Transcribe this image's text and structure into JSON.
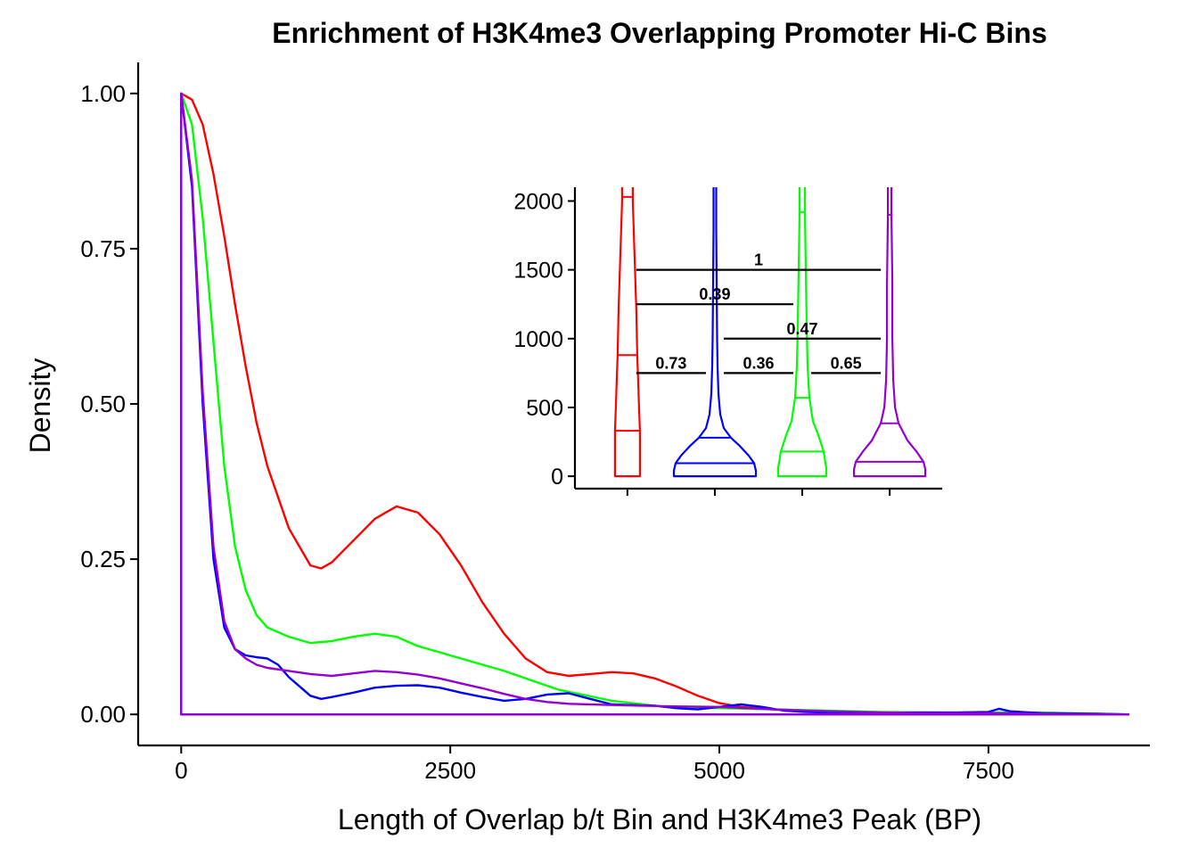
{
  "chart_data": [
    {
      "type": "line",
      "title": "Enrichment of H3K4me3 Overlapping Promoter Hi-C Bins",
      "xlabel": "Length of Overlap b/t Bin and H3K4me3 Peak (BP)",
      "ylabel": "Density",
      "xlim": [
        -400,
        9000
      ],
      "ylim": [
        -0.05,
        1.05
      ],
      "xticks": [
        0,
        2500,
        5000,
        7500
      ],
      "xtick_labels": [
        "0",
        "2500",
        "5000",
        "7500"
      ],
      "yticks": [
        0,
        0.25,
        0.5,
        0.75,
        1.0
      ],
      "ytick_labels": [
        "0.00",
        "0.25",
        "0.50",
        "0.75",
        "1.00"
      ],
      "grid": false,
      "legend": "none",
      "series": [
        {
          "color": "#FF0000",
          "x": [
            0,
            100,
            200,
            300,
            400,
            500,
            600,
            700,
            800,
            1000,
            1200,
            1300,
            1400,
            1600,
            1800,
            2000,
            2200,
            2400,
            2600,
            2800,
            3000,
            3200,
            3400,
            3600,
            3800,
            4000,
            4200,
            4400,
            4600,
            4800,
            5000,
            5200,
            5500,
            6000,
            6500,
            7000,
            7500,
            8000,
            8500,
            8800
          ],
          "y": [
            1.0,
            0.99,
            0.95,
            0.87,
            0.77,
            0.66,
            0.56,
            0.47,
            0.4,
            0.3,
            0.24,
            0.235,
            0.245,
            0.28,
            0.315,
            0.335,
            0.325,
            0.29,
            0.24,
            0.18,
            0.13,
            0.09,
            0.068,
            0.062,
            0.065,
            0.068,
            0.066,
            0.058,
            0.045,
            0.03,
            0.018,
            0.012,
            0.008,
            0.005,
            0.003,
            0.003,
            0.002,
            0.001,
            0.0,
            0.0
          ]
        },
        {
          "color": "#00FF00",
          "x": [
            0,
            100,
            200,
            300,
            400,
            500,
            600,
            700,
            800,
            1000,
            1200,
            1400,
            1600,
            1800,
            2000,
            2200,
            2400,
            2600,
            2800,
            3000,
            3200,
            3500,
            4000,
            4500,
            5000,
            5500,
            6000,
            6500,
            7000,
            7500,
            8000,
            8500,
            8800
          ],
          "y": [
            1.0,
            0.95,
            0.8,
            0.6,
            0.4,
            0.27,
            0.2,
            0.16,
            0.14,
            0.125,
            0.115,
            0.118,
            0.125,
            0.13,
            0.125,
            0.11,
            0.1,
            0.09,
            0.08,
            0.07,
            0.058,
            0.04,
            0.022,
            0.012,
            0.01,
            0.008,
            0.006,
            0.004,
            0.003,
            0.003,
            0.003,
            0.001,
            0.0
          ]
        },
        {
          "color": "#0000FF",
          "x": [
            0,
            100,
            200,
            300,
            400,
            500,
            600,
            700,
            800,
            900,
            1000,
            1100,
            1200,
            1300,
            1400,
            1600,
            1800,
            2000,
            2200,
            2400,
            2600,
            2800,
            3000,
            3200,
            3400,
            3600,
            3800,
            4000,
            4200,
            4400,
            4600,
            4800,
            5000,
            5200,
            5400,
            5600,
            5800,
            6000,
            6400,
            6800,
            7200,
            7500,
            7600,
            7700,
            8000,
            8500,
            8800
          ],
          "y": [
            1.0,
            0.85,
            0.5,
            0.25,
            0.14,
            0.105,
            0.095,
            0.092,
            0.09,
            0.08,
            0.06,
            0.045,
            0.03,
            0.025,
            0.028,
            0.035,
            0.043,
            0.046,
            0.047,
            0.043,
            0.035,
            0.028,
            0.022,
            0.025,
            0.032,
            0.034,
            0.025,
            0.016,
            0.015,
            0.014,
            0.01,
            0.008,
            0.012,
            0.016,
            0.012,
            0.006,
            0.004,
            0.003,
            0.002,
            0.003,
            0.003,
            0.004,
            0.009,
            0.005,
            0.002,
            0.001,
            0.0
          ]
        },
        {
          "color": "#9400D3",
          "x": [
            0,
            100,
            200,
            300,
            400,
            500,
            600,
            700,
            800,
            1000,
            1200,
            1400,
            1600,
            1800,
            2000,
            2200,
            2400,
            2600,
            2800,
            3000,
            3200,
            3400,
            3600,
            4000,
            4500,
            5000,
            5500,
            6000,
            6500,
            7000,
            7500,
            8000,
            8500,
            8800
          ],
          "y": [
            1.0,
            0.86,
            0.52,
            0.27,
            0.15,
            0.105,
            0.09,
            0.08,
            0.075,
            0.07,
            0.065,
            0.062,
            0.066,
            0.07,
            0.068,
            0.064,
            0.058,
            0.05,
            0.042,
            0.033,
            0.025,
            0.02,
            0.017,
            0.015,
            0.013,
            0.012,
            0.008,
            0.005,
            0.003,
            0.002,
            0.002,
            0.001,
            0.0,
            0.0
          ]
        }
      ]
    },
    {
      "type": "violin",
      "title": "",
      "xlabel": "",
      "ylabel": "",
      "ylim": [
        -90,
        2100
      ],
      "yticks": [
        0,
        500,
        1000,
        1500,
        2000
      ],
      "ytick_labels": [
        "0",
        "500",
        "1000",
        "1500",
        "2000"
      ],
      "grid": false,
      "legend": "none",
      "groups": [
        {
          "color": "#FF0000",
          "quartile_lines": [
            330,
            880,
            2030
          ],
          "profile": [
            [
              0,
              14
            ],
            [
              150,
              14
            ],
            [
              300,
              14
            ],
            [
              330,
              14
            ],
            [
              500,
              13
            ],
            [
              700,
              12
            ],
            [
              880,
              11
            ],
            [
              1200,
              10
            ],
            [
              1600,
              8
            ],
            [
              2000,
              6
            ],
            [
              2100,
              6
            ]
          ]
        },
        {
          "color": "#0000FF",
          "quartile_lines": [
            95,
            280
          ],
          "profile": [
            [
              0,
              46
            ],
            [
              40,
              46
            ],
            [
              95,
              44
            ],
            [
              150,
              38
            ],
            [
              220,
              28
            ],
            [
              280,
              18
            ],
            [
              350,
              10
            ],
            [
              450,
              6
            ],
            [
              600,
              4
            ],
            [
              800,
              3
            ],
            [
              1000,
              2.5
            ],
            [
              1400,
              2
            ],
            [
              1800,
              1.5
            ],
            [
              2100,
              1.5
            ]
          ]
        },
        {
          "color": "#00FF00",
          "quartile_lines": [
            180,
            570,
            1920
          ],
          "profile": [
            [
              0,
              27
            ],
            [
              60,
              27
            ],
            [
              180,
              24
            ],
            [
              300,
              18
            ],
            [
              400,
              12
            ],
            [
              570,
              8
            ],
            [
              800,
              6
            ],
            [
              1100,
              5
            ],
            [
              1500,
              4
            ],
            [
              1920,
              3
            ],
            [
              2100,
              3
            ]
          ]
        },
        {
          "color": "#9400D3",
          "quartile_lines": [
            105,
            385,
            1900
          ],
          "profile": [
            [
              0,
              40
            ],
            [
              50,
              40
            ],
            [
              105,
              38
            ],
            [
              180,
              30
            ],
            [
              260,
              20
            ],
            [
              385,
              10
            ],
            [
              500,
              6
            ],
            [
              700,
              4
            ],
            [
              1000,
              3
            ],
            [
              1400,
              3
            ],
            [
              1900,
              2
            ],
            [
              2100,
              2
            ]
          ]
        }
      ],
      "comparisons": [
        {
          "from_group": 1,
          "to_group": 2,
          "y": 750,
          "label": "0.73"
        },
        {
          "from_group": 2,
          "to_group": 3,
          "y": 750,
          "label": "0.36"
        },
        {
          "from_group": 3,
          "to_group": 4,
          "y": 750,
          "label": "0.65"
        },
        {
          "from_group": 2,
          "to_group": 4,
          "y": 1000,
          "label": "0.47"
        },
        {
          "from_group": 1,
          "to_group": 3,
          "y": 1250,
          "label": "0.39"
        },
        {
          "from_group": 1,
          "to_group": 4,
          "y": 1500,
          "label": "1"
        }
      ]
    }
  ]
}
